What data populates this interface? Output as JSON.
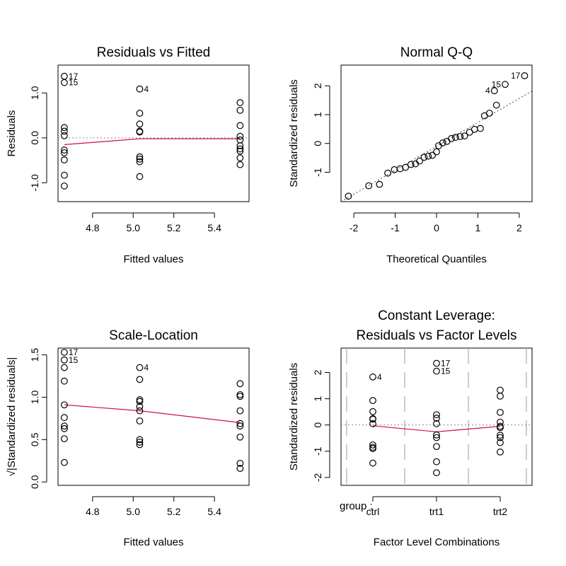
{
  "chart_data": [
    {
      "id": "resfit",
      "type": "scatter",
      "title": "Residuals vs Fitted",
      "xlabel": "Fitted values",
      "ylabel": "Residuals",
      "xlim": [
        4.63,
        5.57
      ],
      "ylim": [
        -1.42,
        1.62
      ],
      "xticks": [
        4.8,
        5.0,
        5.2,
        5.4
      ],
      "xtick_labels": [
        "4.8",
        "5.0",
        "5.2",
        "5.4"
      ],
      "yticks": [
        -1.0,
        0.0,
        1.0
      ],
      "ytick_labels": [
        "-1.0",
        "0.0",
        "1.0"
      ],
      "points": [
        {
          "x": 4.661,
          "y": 1.371,
          "label": "17"
        },
        {
          "x": 4.661,
          "y": 1.231,
          "label": "15"
        },
        {
          "x": 4.661,
          "y": 0.229
        },
        {
          "x": 4.661,
          "y": 0.149
        },
        {
          "x": 4.661,
          "y": 0.049
        },
        {
          "x": 4.661,
          "y": -0.271
        },
        {
          "x": 4.661,
          "y": -0.331
        },
        {
          "x": 4.661,
          "y": -0.491
        },
        {
          "x": 4.661,
          "y": -0.831
        },
        {
          "x": 4.661,
          "y": -1.071
        },
        {
          "x": 5.032,
          "y": 1.088,
          "label": "4"
        },
        {
          "x": 5.032,
          "y": 0.548
        },
        {
          "x": 5.032,
          "y": 0.308
        },
        {
          "x": 5.032,
          "y": 0.148
        },
        {
          "x": 5.032,
          "y": 0.128
        },
        {
          "x": 5.032,
          "y": -0.422
        },
        {
          "x": 5.032,
          "y": -0.472
        },
        {
          "x": 5.032,
          "y": -0.532
        },
        {
          "x": 5.032,
          "y": -0.862
        },
        {
          "x": 5.526,
          "y": 0.784
        },
        {
          "x": 5.526,
          "y": 0.614
        },
        {
          "x": 5.526,
          "y": 0.274
        },
        {
          "x": 5.526,
          "y": 0.034
        },
        {
          "x": 5.526,
          "y": -0.046
        },
        {
          "x": 5.526,
          "y": -0.176
        },
        {
          "x": 5.526,
          "y": -0.246
        },
        {
          "x": 5.526,
          "y": -0.296
        },
        {
          "x": 5.526,
          "y": -0.446
        },
        {
          "x": 5.526,
          "y": -0.596
        }
      ],
      "smooth": [
        {
          "x": 4.661,
          "y": -0.15
        },
        {
          "x": 5.032,
          "y": -0.02
        },
        {
          "x": 5.526,
          "y": -0.02
        }
      ],
      "hline": 0
    },
    {
      "id": "qq",
      "type": "scatter",
      "title": "Normal Q-Q",
      "xlabel": "Theoretical Quantiles",
      "ylabel": "Standardized residuals",
      "xlim": [
        -2.31,
        2.31
      ],
      "ylim": [
        -2.02,
        2.72
      ],
      "xticks": [
        -2,
        -1,
        0,
        1,
        2
      ],
      "xtick_labels": [
        "-2",
        "-1",
        "0",
        "1",
        "2"
      ],
      "yticks": [
        -1,
        0,
        1,
        2
      ],
      "ytick_labels": [
        "-1",
        "0",
        "1",
        "2"
      ],
      "points": [
        {
          "x": -2.13,
          "y": -1.83
        },
        {
          "x": -1.64,
          "y": -1.47
        },
        {
          "x": -1.38,
          "y": -1.42
        },
        {
          "x": -1.18,
          "y": -1.03
        },
        {
          "x": -1.02,
          "y": -0.91
        },
        {
          "x": -0.88,
          "y": -0.88
        },
        {
          "x": -0.75,
          "y": -0.83
        },
        {
          "x": -0.62,
          "y": -0.73
        },
        {
          "x": -0.51,
          "y": -0.71
        },
        {
          "x": -0.41,
          "y": -0.61
        },
        {
          "x": -0.3,
          "y": -0.48
        },
        {
          "x": -0.2,
          "y": -0.44
        },
        {
          "x": -0.1,
          "y": -0.41
        },
        {
          "x": 0.0,
          "y": -0.29
        },
        {
          "x": 0.05,
          "y": -0.08
        },
        {
          "x": 0.15,
          "y": 0.02
        },
        {
          "x": 0.25,
          "y": 0.07
        },
        {
          "x": 0.36,
          "y": 0.17
        },
        {
          "x": 0.46,
          "y": 0.21
        },
        {
          "x": 0.57,
          "y": 0.24
        },
        {
          "x": 0.68,
          "y": 0.26
        },
        {
          "x": 0.8,
          "y": 0.39
        },
        {
          "x": 0.92,
          "y": 0.49
        },
        {
          "x": 1.06,
          "y": 0.52
        },
        {
          "x": 1.16,
          "y": 0.96
        },
        {
          "x": 1.28,
          "y": 1.05
        },
        {
          "x": 1.45,
          "y": 1.33
        },
        {
          "x": 1.4,
          "y": 1.83,
          "label": "4"
        },
        {
          "x": 1.66,
          "y": 2.05,
          "label": "15"
        },
        {
          "x": 2.13,
          "y": 2.35,
          "label": "17"
        }
      ],
      "qq_line": [
        {
          "x": -2.31,
          "y": -2.02
        },
        {
          "x": 2.31,
          "y": 1.82
        }
      ]
    },
    {
      "id": "scaleloc",
      "type": "scatter",
      "title": "Scale-Location",
      "xlabel": "Fitted values",
      "ylabel": "√|Standardized residuals|",
      "xlim": [
        4.63,
        5.57
      ],
      "ylim": [
        -0.04,
        1.58
      ],
      "xticks": [
        4.8,
        5.0,
        5.2,
        5.4
      ],
      "xtick_labels": [
        "4.8",
        "5.0",
        "5.2",
        "5.4"
      ],
      "yticks": [
        0.0,
        0.5,
        1.0,
        1.5
      ],
      "ytick_labels": [
        "0.0",
        "0.5",
        "1.0",
        "1.5"
      ],
      "points": [
        {
          "x": 4.661,
          "y": 1.53,
          "label": "17"
        },
        {
          "x": 4.661,
          "y": 1.44,
          "label": "15"
        },
        {
          "x": 4.661,
          "y": 1.35
        },
        {
          "x": 4.661,
          "y": 1.19
        },
        {
          "x": 4.661,
          "y": 0.91
        },
        {
          "x": 4.661,
          "y": 0.76
        },
        {
          "x": 4.661,
          "y": 0.66
        },
        {
          "x": 4.661,
          "y": 0.63
        },
        {
          "x": 4.661,
          "y": 0.51
        },
        {
          "x": 4.661,
          "y": 0.23
        },
        {
          "x": 5.032,
          "y": 1.35,
          "label": "4"
        },
        {
          "x": 5.032,
          "y": 1.21
        },
        {
          "x": 5.032,
          "y": 0.97
        },
        {
          "x": 5.032,
          "y": 0.95
        },
        {
          "x": 5.032,
          "y": 0.89
        },
        {
          "x": 5.032,
          "y": 0.84
        },
        {
          "x": 5.032,
          "y": 0.72
        },
        {
          "x": 5.032,
          "y": 0.5
        },
        {
          "x": 5.032,
          "y": 0.47
        },
        {
          "x": 5.032,
          "y": 0.44
        },
        {
          "x": 5.526,
          "y": 1.16
        },
        {
          "x": 5.526,
          "y": 1.03
        },
        {
          "x": 5.526,
          "y": 1.01
        },
        {
          "x": 5.526,
          "y": 0.84
        },
        {
          "x": 5.526,
          "y": 0.69
        },
        {
          "x": 5.526,
          "y": 0.66
        },
        {
          "x": 5.526,
          "y": 0.53
        },
        {
          "x": 5.526,
          "y": 0.22
        },
        {
          "x": 5.526,
          "y": 0.16
        }
      ],
      "smooth": [
        {
          "x": 4.661,
          "y": 0.91
        },
        {
          "x": 5.032,
          "y": 0.84
        },
        {
          "x": 5.526,
          "y": 0.7
        }
      ]
    },
    {
      "id": "leverage",
      "type": "scatter",
      "title": [
        "Constant Leverage:",
        "Residuals vs Factor Levels"
      ],
      "xlabel": "Factor Level Combinations",
      "ylabel": "Standardized residuals",
      "factor_name": "group :",
      "xlim": [
        0.5,
        3.5
      ],
      "ylim": [
        -2.3,
        2.93
      ],
      "categories": [
        "ctrl",
        "trt1",
        "trt2"
      ],
      "category_x": [
        1,
        2,
        3
      ],
      "separators": [
        0.5,
        1.5,
        2.5,
        3.5
      ],
      "yticks": [
        -2,
        -1,
        0,
        1,
        2
      ],
      "ytick_labels": [
        "-2",
        "-1",
        "0",
        "1",
        "2"
      ],
      "points": [
        {
          "x": 1,
          "y": 1.83,
          "label": "4"
        },
        {
          "x": 1,
          "y": 0.93
        },
        {
          "x": 1,
          "y": 0.51
        },
        {
          "x": 1,
          "y": 0.24
        },
        {
          "x": 1,
          "y": 0.22
        },
        {
          "x": 1,
          "y": 0.05
        },
        {
          "x": 1,
          "y": -0.76
        },
        {
          "x": 1,
          "y": -0.85
        },
        {
          "x": 1,
          "y": -0.9
        },
        {
          "x": 1,
          "y": -1.45
        },
        {
          "x": 2,
          "y": 2.35,
          "label": "17"
        },
        {
          "x": 2,
          "y": 2.05,
          "label": "15"
        },
        {
          "x": 2,
          "y": 0.39
        },
        {
          "x": 2,
          "y": 0.26
        },
        {
          "x": 2,
          "y": 0.05
        },
        {
          "x": 2,
          "y": -0.38
        },
        {
          "x": 2,
          "y": -0.48
        },
        {
          "x": 2,
          "y": -0.82
        },
        {
          "x": 2,
          "y": -1.4
        },
        {
          "x": 2,
          "y": -1.82
        },
        {
          "x": 3,
          "y": 1.33
        },
        {
          "x": 3,
          "y": 1.1
        },
        {
          "x": 3,
          "y": 0.48
        },
        {
          "x": 3,
          "y": 0.11
        },
        {
          "x": 3,
          "y": -0.05
        },
        {
          "x": 3,
          "y": -0.1
        },
        {
          "x": 3,
          "y": -0.39
        },
        {
          "x": 3,
          "y": -0.48
        },
        {
          "x": 3,
          "y": -0.67
        },
        {
          "x": 3,
          "y": -1.03
        }
      ],
      "smooth": [
        {
          "x": 1,
          "y": -0.03
        },
        {
          "x": 2,
          "y": -0.26
        },
        {
          "x": 3,
          "y": -0.05
        }
      ],
      "hline": 0
    }
  ]
}
